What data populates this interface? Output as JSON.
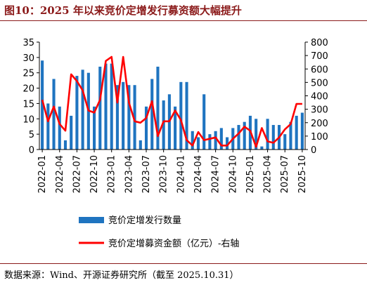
{
  "title": "图10：2025 年以来竞价定增发行募资额大幅提升",
  "source": "数据来源：Wind、开源证券研究所（截至 2025.10.31）",
  "colors": {
    "title": "#8b1a1a",
    "bar": "#1f74c0",
    "line": "#ff0000"
  },
  "chart_data": {
    "type": "bar+line",
    "x_labels": [
      "2022-01",
      "2022-02",
      "2022-03",
      "2022-04",
      "2022-05",
      "2022-06",
      "2022-07",
      "2022-08",
      "2022-09",
      "2022-10",
      "2022-11",
      "2022-12",
      "2023-01",
      "2023-02",
      "2023-03",
      "2023-04",
      "2023-05",
      "2023-06",
      "2023-07",
      "2023-08",
      "2023-09",
      "2023-10",
      "2023-11",
      "2023-12",
      "2024-01",
      "2024-02",
      "2024-03",
      "2024-04",
      "2024-05",
      "2024-06",
      "2024-07",
      "2024-08",
      "2024-09",
      "2024-10",
      "2024-11",
      "2024-12",
      "2025-01",
      "2025-02",
      "2025-03",
      "2025-04",
      "2025-05",
      "2025-06",
      "2025-07",
      "2025-08",
      "2025-09",
      "2025-10"
    ],
    "x_tick_labels": [
      "2022-01",
      "2022-04",
      "2022-07",
      "2022-10",
      "2023-01",
      "2023-04",
      "2023-07",
      "2023-10",
      "2024-01",
      "2024-04",
      "2024-07",
      "2024-10",
      "2025-01",
      "2025-04",
      "2025-07",
      "2025-10"
    ],
    "left_axis": {
      "ylim": [
        0,
        35
      ],
      "ticks": [
        0,
        5,
        10,
        15,
        20,
        25,
        30,
        35
      ]
    },
    "right_axis": {
      "ylim": [
        0,
        800
      ],
      "ticks": [
        0,
        100,
        200,
        300,
        400,
        500,
        600,
        700,
        800
      ]
    },
    "series": [
      {
        "name": "竞价定增发行数量",
        "type": "bar",
        "axis": "left",
        "values": [
          29,
          15,
          23,
          14,
          3,
          11,
          24,
          26,
          25,
          14,
          27,
          28,
          28,
          21,
          22,
          21,
          21,
          3,
          14,
          23,
          27,
          16,
          18,
          14,
          22,
          22,
          6,
          4,
          18,
          5,
          6,
          7,
          4,
          7,
          8,
          9,
          11,
          10,
          1,
          10,
          8,
          8,
          5,
          9,
          11,
          12
        ]
      },
      {
        "name": "竞价定增募资金额（亿元）-右轴",
        "type": "line",
        "axis": "right",
        "values": [
          370,
          210,
          320,
          190,
          140,
          560,
          510,
          440,
          290,
          275,
          370,
          660,
          690,
          350,
          690,
          350,
          210,
          200,
          235,
          360,
          100,
          210,
          210,
          290,
          220,
          70,
          30,
          130,
          70,
          80,
          90,
          30,
          30,
          80,
          120,
          170,
          140,
          20,
          160,
          60,
          50,
          90,
          150,
          190,
          340,
          340
        ]
      }
    ]
  }
}
